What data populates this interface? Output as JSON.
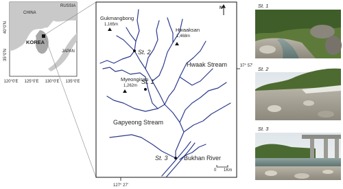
{
  "inset": {
    "countries": [
      "RUSSIA",
      "CHINA",
      "KOREA",
      "JAPAN"
    ],
    "lat_labels": [
      "40°0'N",
      "35°0'N"
    ],
    "lon_labels": [
      "120°0'E",
      "125°0'E",
      "130°0'E",
      "135°0'E"
    ]
  },
  "main_map": {
    "north": "N",
    "peaks": [
      {
        "name": "Gukmangbong",
        "elevation": "1,165m"
      },
      {
        "name": "Hwaaksan",
        "elevation": "1,468m"
      },
      {
        "name": "Myeongisan",
        "elevation": "1,262m"
      }
    ],
    "stations": [
      "St. 1",
      "St. 2",
      "St. 3"
    ],
    "streams": [
      "Hwaak Stream",
      "Gapyeong Stream",
      "Bukhan River"
    ],
    "latitude": "37° 57'",
    "longitude": "127° 27'",
    "scale": [
      "0",
      "1Km"
    ]
  },
  "photos": [
    {
      "label": "St. 1"
    },
    {
      "label": "St. 2"
    },
    {
      "label": "St. 3"
    }
  ]
}
